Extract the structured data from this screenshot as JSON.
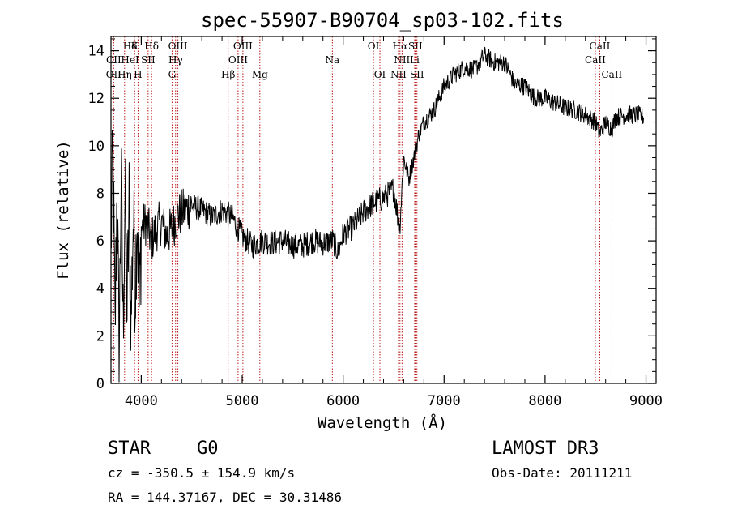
{
  "chart_data": {
    "type": "line",
    "title": "spec-55907-B90704_sp03-102.fits",
    "xlabel": "Wavelength (Å)",
    "ylabel": "Flux (relative)",
    "xlim": [
      3700,
      9100
    ],
    "ylim": [
      0,
      14.6
    ],
    "x_ticks": [
      4000,
      5000,
      6000,
      7000,
      8000,
      9000
    ],
    "y_ticks": [
      0,
      2,
      4,
      6,
      8,
      10,
      12,
      14
    ],
    "grid": false,
    "series": [
      {
        "name": "flux",
        "x": [
          3700,
          3720,
          3740,
          3760,
          3780,
          3800,
          3820,
          3840,
          3860,
          3880,
          3900,
          3920,
          3940,
          3960,
          3980,
          4000,
          4050,
          4100,
          4150,
          4200,
          4250,
          4300,
          4350,
          4400,
          4500,
          4600,
          4700,
          4800,
          4900,
          5000,
          5100,
          5200,
          5300,
          5400,
          5500,
          5600,
          5700,
          5800,
          5900,
          5950,
          6000,
          6100,
          6200,
          6300,
          6400,
          6500,
          6560,
          6600,
          6650,
          6700,
          6750,
          6800,
          6900,
          7000,
          7100,
          7200,
          7300,
          7400,
          7500,
          7600,
          7700,
          7800,
          7900,
          8000,
          8100,
          8200,
          8300,
          8400,
          8500,
          8540,
          8600,
          8660,
          8700,
          8800,
          8900,
          8980
        ],
        "y": [
          6.0,
          9.5,
          2.0,
          8.5,
          0.8,
          9.0,
          2.5,
          8.0,
          3.0,
          7.5,
          2.5,
          7.0,
          4.0,
          7.5,
          3.0,
          6.5,
          6.8,
          6.0,
          6.5,
          6.8,
          6.2,
          6.5,
          7.0,
          7.2,
          7.5,
          7.3,
          7.0,
          7.3,
          7.0,
          6.2,
          5.8,
          6.0,
          5.9,
          6.0,
          5.8,
          5.8,
          6.0,
          5.9,
          6.0,
          5.5,
          6.3,
          6.6,
          7.2,
          7.6,
          7.8,
          8.2,
          6.5,
          9.5,
          8.6,
          9.5,
          10.5,
          11.0,
          11.5,
          12.5,
          13.0,
          13.3,
          13.2,
          13.8,
          13.5,
          13.5,
          12.6,
          12.5,
          12.0,
          12.0,
          11.8,
          11.6,
          11.5,
          11.3,
          11.0,
          10.5,
          11.0,
          10.7,
          11.2,
          11.3,
          11.3,
          11.2
        ]
      }
    ],
    "spectral_lines": [
      {
        "label": "Hδ",
        "x": 3889,
        "row": 0
      },
      {
        "label": "K",
        "x": 3934,
        "row": 0
      },
      {
        "label": "Hδ",
        "x": 4102,
        "row": 0
      },
      {
        "label": "OIII",
        "x": 4363,
        "row": 0
      },
      {
        "label": "OIII",
        "x": 5007,
        "row": 0
      },
      {
        "label": "OI",
        "x": 6300,
        "row": 0
      },
      {
        "label": "Hα",
        "x": 6563,
        "row": 0
      },
      {
        "label": "SII",
        "x": 6716,
        "row": 0
      },
      {
        "label": "CaII",
        "x": 8542,
        "row": 0
      },
      {
        "label": "CII",
        "x": 3727,
        "row": 1
      },
      {
        "label": "HeI",
        "x": 3889,
        "row": 1
      },
      {
        "label": "SII",
        "x": 4068,
        "row": 1
      },
      {
        "label": "Hγ",
        "x": 4340,
        "row": 1
      },
      {
        "label": "OIII",
        "x": 4959,
        "row": 1
      },
      {
        "label": "Na",
        "x": 5893,
        "row": 1
      },
      {
        "label": "NII",
        "x": 6583,
        "row": 1
      },
      {
        "label": "Li",
        "x": 6708,
        "row": 1
      },
      {
        "label": "CaII",
        "x": 8498,
        "row": 1
      },
      {
        "label": "OII",
        "x": 3727,
        "row": 2
      },
      {
        "label": "Hη",
        "x": 3835,
        "row": 2
      },
      {
        "label": "H",
        "x": 3968,
        "row": 2
      },
      {
        "label": "G",
        "x": 4305,
        "row": 2
      },
      {
        "label": "Hβ",
        "x": 4861,
        "row": 2
      },
      {
        "label": "Mg",
        "x": 5175,
        "row": 2
      },
      {
        "label": "OI",
        "x": 6364,
        "row": 2
      },
      {
        "label": "NII",
        "x": 6548,
        "row": 2
      },
      {
        "label": "SII",
        "x": 6731,
        "row": 2
      },
      {
        "label": "CaII",
        "x": 8662,
        "row": 2
      }
    ]
  },
  "info": {
    "object_class": "STAR",
    "subclass": "G0",
    "survey": "LAMOST DR3",
    "cz": "cz = -350.5 ± 154.9 km/s",
    "obs_date": "Obs-Date: 20111211",
    "coords": "RA = 144.37167, DEC =  30.31486"
  },
  "colors": {
    "line_marker": "#b30000",
    "spectrum": "#000000"
  }
}
